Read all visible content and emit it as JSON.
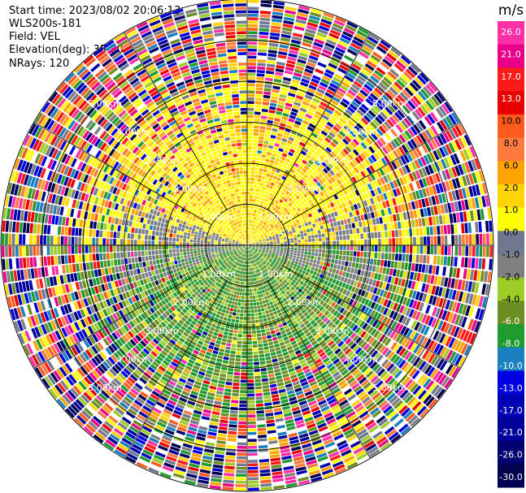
{
  "header": {
    "start_time": "Start time: 2023/08/02 20:06:13",
    "site": "WLS200s-181",
    "field": "Field: VEL",
    "elevation": "Elevation(deg): 35.30",
    "nrays": "NRays: 120"
  },
  "chart_data": {
    "type": "heatmap",
    "projection": "polar-ppi",
    "field": "VEL",
    "units": "m/s",
    "n_rays": 120,
    "max_range_km": 6.0,
    "range_rings_km": [
      1,
      2,
      3,
      4,
      5,
      6
    ],
    "range_ring_labels": [
      "1.00km",
      "2.00km",
      "3.00km",
      "4.00km",
      "5.00km"
    ],
    "spoke_angles_deg": [
      0,
      30,
      60,
      90,
      120,
      150,
      180,
      210,
      240,
      270,
      300,
      330
    ],
    "colorbar": {
      "title": "m/s",
      "tick_labels": [
        "26.0",
        "21.0",
        "17.0",
        "13.0",
        "10.0",
        "8.0",
        "6.0",
        "2.0",
        "1.0",
        "0.0",
        "-1.0",
        "-2.0",
        "-4.0",
        "-6.0",
        "-8.0",
        "-10.0",
        "-13.0",
        "-17.0",
        "-21.0",
        "-26.0",
        "-30.0"
      ],
      "colors": [
        "#ff2fa8",
        "#e8008a",
        "#ff1a1a",
        "#e80000",
        "#ff5a1e",
        "#ff7a3c",
        "#ffa300",
        "#ffd400",
        "#ffff00",
        "#6e7890",
        "#7f7f7f",
        "#9ccc28",
        "#6b8e23",
        "#1f9b2f",
        "#1a7fbf",
        "#0000e0",
        "#0000b4",
        "#00009a",
        "#000070",
        "#000050"
      ]
    },
    "pattern": {
      "inner_near_zero_km": 1.2,
      "north_half_inner_field": "positive (yellow/orange, ~1 to 8 m/s)",
      "south_half_inner_field": "negative (green, ~-2 to -8 m/s)",
      "outer_ranges": "noisy, full color range"
    }
  }
}
